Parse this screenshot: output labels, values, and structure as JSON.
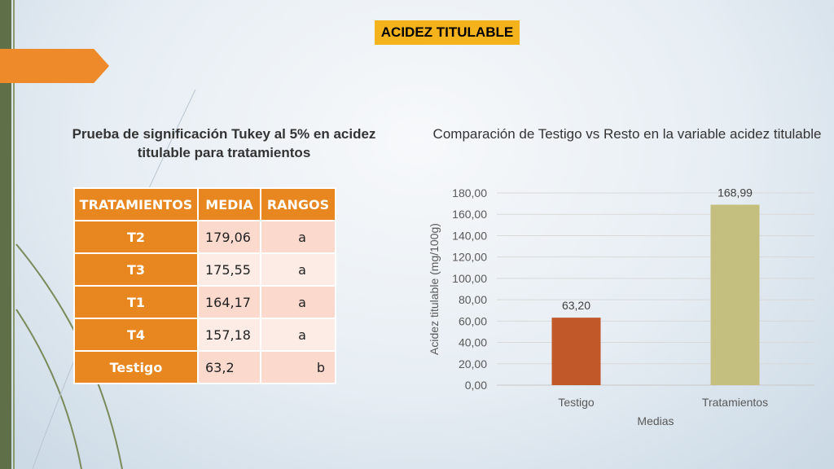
{
  "header": {
    "title": "ACIDEZ TITULABLE"
  },
  "table": {
    "title": "Prueba de significación Tukey al 5% en acidez titulable para tratamientos",
    "headers": [
      "TRATAMIENTOS",
      "MEDIA",
      "RANGOS"
    ],
    "rows": [
      {
        "trat": "T2",
        "media": "179,06",
        "rango": "a"
      },
      {
        "trat": "T3",
        "media": "175,55",
        "rango": "a"
      },
      {
        "trat": "T1",
        "media": "164,17",
        "rango": "a"
      },
      {
        "trat": "T4",
        "media": "157,18",
        "rango": "a"
      },
      {
        "trat": "Testigo",
        "media": "63,2",
        "rango": "b"
      }
    ]
  },
  "chart_data": {
    "type": "bar",
    "title": "Comparación de Testigo vs Resto en la variable acidez titulable",
    "xlabel": "Medias",
    "ylabel": "Acidez titulable (mg/100g)",
    "categories": [
      "Testigo",
      "Tratamientos"
    ],
    "values": [
      63.2,
      168.99
    ],
    "data_labels": [
      "63,20",
      "168,99"
    ],
    "colors": [
      "#c0582a",
      "#c4bf7e"
    ],
    "ylim": [
      0,
      180
    ],
    "yticks": [
      "0,00",
      "20,00",
      "40,00",
      "60,00",
      "80,00",
      "100,00",
      "120,00",
      "140,00",
      "160,00",
      "180,00"
    ],
    "grid": true,
    "legend": "none"
  }
}
